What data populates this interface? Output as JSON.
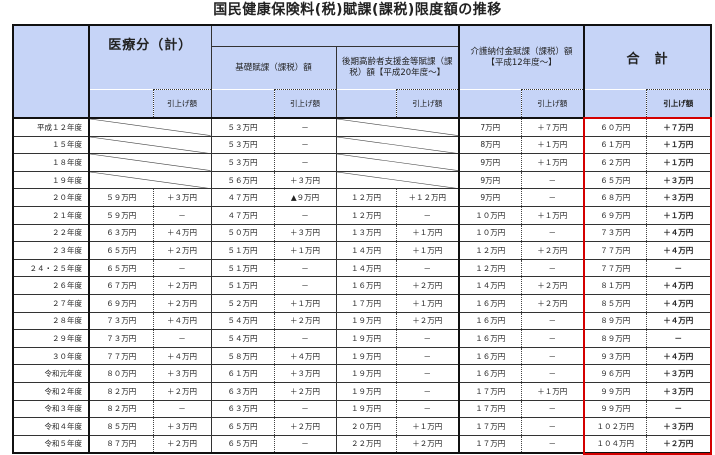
{
  "title": "国民健康保険料(税)賦課(課税)限度額の推移",
  "header": {
    "medical_total": "医療分（計）",
    "basic": "基礎賦課（課税）額",
    "elderly_support": "後期高齢者支援金等賦課（課税）額【平成20年度～】",
    "care": "介護納付金賦課（課税）額【平成12年度～】",
    "total": "合　計",
    "increase": "引上げ額"
  },
  "accent_color": "#d40000",
  "header_bg": "#c6d4f7",
  "rows": [
    [
      "平成１２年度",
      null,
      null,
      "５３万円",
      "－",
      null,
      null,
      "7万円",
      "＋７万円",
      "６０万円",
      "＋７万円"
    ],
    [
      "１５年度",
      null,
      null,
      "５３万円",
      "－",
      null,
      null,
      "8万円",
      "＋１万円",
      "６１万円",
      "＋１万円"
    ],
    [
      "１８年度",
      null,
      null,
      "５３万円",
      "－",
      null,
      null,
      "9万円",
      "＋１万円",
      "６２万円",
      "＋１万円"
    ],
    [
      "１９年度",
      null,
      null,
      "５６万円",
      "＋３万円",
      null,
      null,
      "9万円",
      "－",
      "６５万円",
      "＋３万円"
    ],
    [
      "２０年度",
      "５９万円",
      "＋３万円",
      "４７万円",
      "▲９万円",
      "１２万円",
      "＋１２万円",
      "9万円",
      "－",
      "６８万円",
      "＋３万円"
    ],
    [
      "２１年度",
      "５９万円",
      "－",
      "４７万円",
      "－",
      "１２万円",
      "－",
      "１０万円",
      "＋１万円",
      "６９万円",
      "＋１万円"
    ],
    [
      "２２年度",
      "６３万円",
      "＋４万円",
      "５０万円",
      "＋３万円",
      "１３万円",
      "＋１万円",
      "１０万円",
      "－",
      "７３万円",
      "＋４万円"
    ],
    [
      "２３年度",
      "６５万円",
      "＋２万円",
      "５１万円",
      "＋１万円",
      "１４万円",
      "＋１万円",
      "１２万円",
      "＋２万円",
      "７７万円",
      "＋４万円"
    ],
    [
      "２４・２５年度",
      "６５万円",
      "－",
      "５１万円",
      "－",
      "１４万円",
      "－",
      "１２万円",
      "－",
      "７７万円",
      "－"
    ],
    [
      "２６年度",
      "６７万円",
      "＋２万円",
      "５１万円",
      "－",
      "１６万円",
      "＋２万円",
      "１４万円",
      "＋２万円",
      "８１万円",
      "＋４万円"
    ],
    [
      "２７年度",
      "６９万円",
      "＋２万円",
      "５２万円",
      "＋１万円",
      "１７万円",
      "＋１万円",
      "１６万円",
      "＋２万円",
      "８５万円",
      "＋４万円"
    ],
    [
      "２８年度",
      "７３万円",
      "＋４万円",
      "５４万円",
      "＋２万円",
      "１９万円",
      "＋２万円",
      "１６万円",
      "－",
      "８９万円",
      "＋４万円"
    ],
    [
      "２９年度",
      "７３万円",
      "－",
      "５４万円",
      "－",
      "１９万円",
      "－",
      "１６万円",
      "－",
      "８９万円",
      "－"
    ],
    [
      "３０年度",
      "７７万円",
      "＋４万円",
      "５８万円",
      "＋４万円",
      "１９万円",
      "－",
      "１６万円",
      "－",
      "９３万円",
      "＋４万円"
    ],
    [
      "令和元年度",
      "８０万円",
      "＋３万円",
      "６１万円",
      "＋３万円",
      "１９万円",
      "－",
      "１６万円",
      "－",
      "９６万円",
      "＋３万円"
    ],
    [
      "令和２年度",
      "８２万円",
      "＋２万円",
      "６３万円",
      "＋２万円",
      "１９万円",
      "－",
      "１７万円",
      "＋１万円",
      "９９万円",
      "＋３万円"
    ],
    [
      "令和３年度",
      "８２万円",
      "－",
      "６３万円",
      "－",
      "１９万円",
      "－",
      "１７万円",
      "－",
      "９９万円",
      "－"
    ],
    [
      "令和４年度",
      "８５万円",
      "＋３万円",
      "６５万円",
      "＋２万円",
      "２０万円",
      "＋１万円",
      "１７万円",
      "－",
      "１０２万円",
      "＋３万円"
    ],
    [
      "令和５年度",
      "８７万円",
      "＋２万円",
      "６５万円",
      "－",
      "２２万円",
      "＋２万円",
      "１７万円",
      "－",
      "１０４万円",
      "＋２万円"
    ]
  ]
}
